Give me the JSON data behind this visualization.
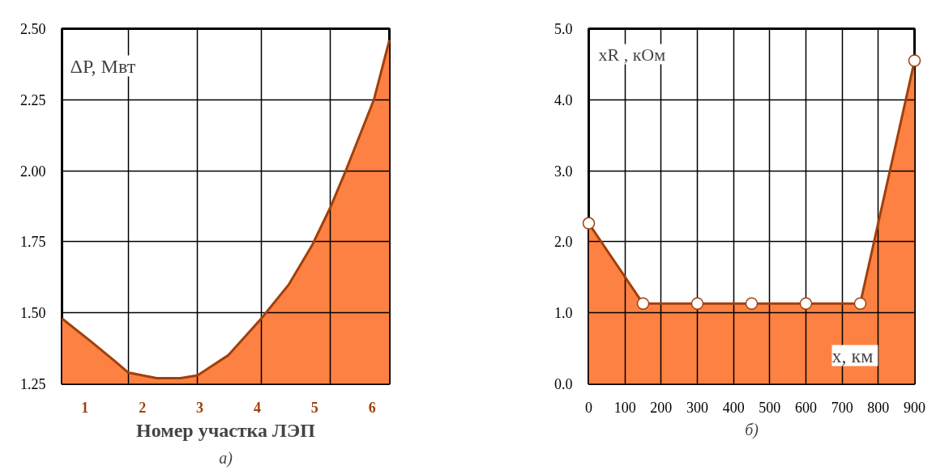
{
  "chart_data": [
    {
      "type": "area",
      "ylabel": "ΔP, Мвт",
      "xlabel": "Номер участка ЛЭП",
      "annotations": [
        "а)"
      ],
      "xlim": [
        0.6,
        6.3
      ],
      "ylim": [
        1.25,
        2.5
      ],
      "xticks": [
        1,
        2,
        3,
        4,
        5,
        6,
        {
          "value": 1.75,
          "label": null
        },
        {
          "value": 2.96,
          "label": null
        },
        {
          "value": 4.07,
          "label": null
        },
        {
          "value": 5.27,
          "label": null
        }
      ],
      "yticks": [
        {
          "value": 1.25,
          "label": "1.25"
        },
        {
          "value": 1.5,
          "label": "1.50"
        },
        {
          "value": 1.75,
          "label": "1.75"
        },
        {
          "value": 2.0,
          "label": "2.00"
        },
        {
          "value": 2.25,
          "label": "2.25"
        },
        {
          "value": 2.5,
          "label": "2.50"
        }
      ],
      "grid": true,
      "marker": "none",
      "series": [
        {
          "color": "#fd8142",
          "x": [
            0.6,
            1.1,
            1.52,
            1.75,
            2.25,
            2.66,
            2.96,
            3.49,
            4.07,
            4.55,
            4.96,
            5.27,
            5.54,
            6.03,
            6.3
          ],
          "values": [
            1.48,
            1.4,
            1.33,
            1.29,
            1.27,
            1.27,
            1.28,
            1.35,
            1.48,
            1.6,
            1.74,
            1.87,
            2.0,
            2.25,
            2.46
          ]
        }
      ]
    },
    {
      "type": "area",
      "ylabel": "xR , кОм",
      "xlabel": "x,  км",
      "annotations": [
        "б)"
      ],
      "xlim": [
        0,
        900
      ],
      "ylim": [
        0,
        5
      ],
      "xticks": [
        0,
        100,
        200,
        300,
        400,
        500,
        600,
        700,
        800,
        900
      ],
      "yticks": [
        {
          "value": 0,
          "label": "0.0"
        },
        {
          "value": 1,
          "label": "1.0"
        },
        {
          "value": 2,
          "label": "2.0"
        },
        {
          "value": 3,
          "label": "3.0"
        },
        {
          "value": 4,
          "label": "4.0"
        },
        {
          "value": 5,
          "label": "5.0"
        }
      ],
      "grid": true,
      "marker": "circle",
      "series": [
        {
          "color": "#fd8142",
          "x": [
            0,
            150,
            300,
            450,
            600,
            750,
            900
          ],
          "values": [
            2.26,
            1.13,
            1.13,
            1.13,
            1.13,
            1.13,
            4.55
          ]
        }
      ]
    }
  ]
}
